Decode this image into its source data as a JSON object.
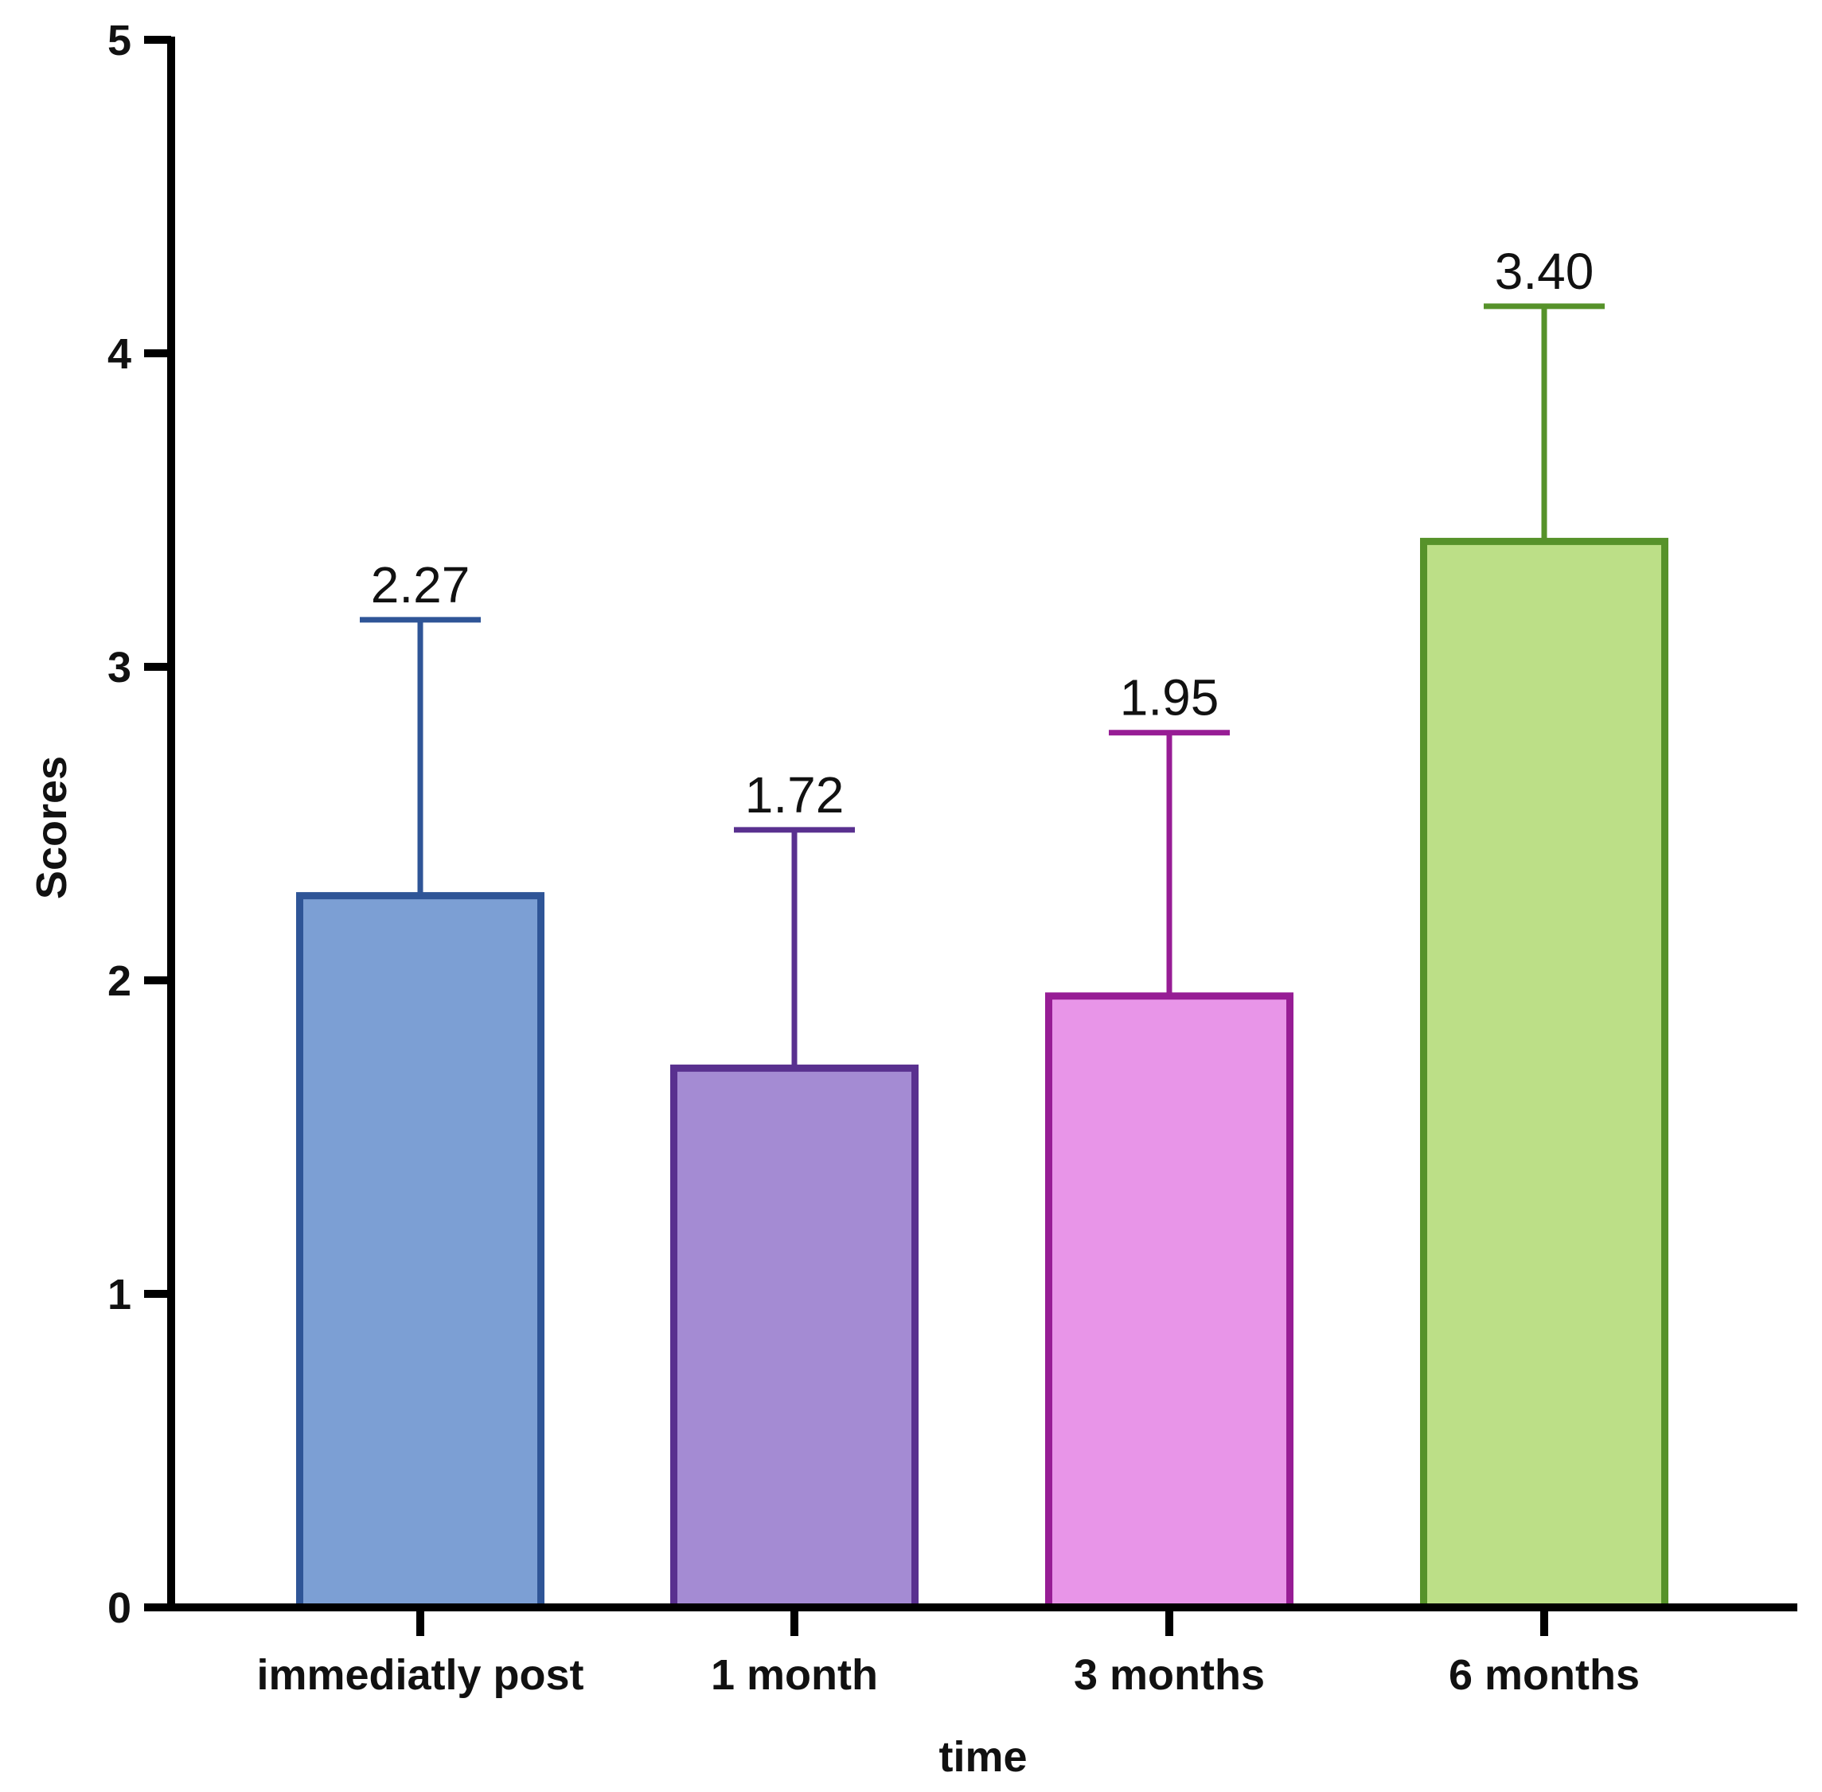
{
  "chart_data": {
    "type": "bar",
    "title": "",
    "xlabel": "time",
    "ylabel": "Scores",
    "ylim": [
      0,
      5
    ],
    "yticks": [
      "0",
      "1",
      "2",
      "3",
      "4",
      "5"
    ],
    "grid": false,
    "categories": [
      "immediatly post",
      "1 month",
      "3 months",
      "6 months"
    ],
    "values": [
      2.27,
      1.72,
      1.95,
      3.4
    ],
    "error_upper": [
      3.15,
      2.48,
      2.79,
      4.15
    ],
    "data_labels": [
      "2.27",
      "1.72",
      "1.95",
      "3.40"
    ],
    "colors": {
      "fill": [
        "#7c9fd4",
        "#a48bd3",
        "#e895e8",
        "#bcdf87"
      ],
      "stroke": [
        "#2f5597",
        "#59308f",
        "#971d95",
        "#56922a"
      ]
    },
    "axis_color": "#000000"
  }
}
